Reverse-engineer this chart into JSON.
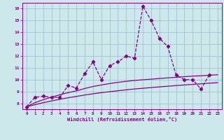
{
  "xlabel": "Windchill (Refroidissement éolien,°C)",
  "x": [
    0,
    1,
    2,
    3,
    4,
    5,
    6,
    7,
    8,
    9,
    10,
    11,
    12,
    13,
    14,
    15,
    16,
    17,
    18,
    19,
    20,
    21,
    22,
    23
  ],
  "line1": [
    7.7,
    8.5,
    8.6,
    8.5,
    8.5,
    9.5,
    9.3,
    10.5,
    11.5,
    10.0,
    11.2,
    11.5,
    12.0,
    11.8,
    16.2,
    15.0,
    13.5,
    12.8,
    10.4,
    10.0,
    10.0,
    9.2,
    10.4,
    null
  ],
  "line2": [
    7.7,
    8.05,
    8.3,
    8.52,
    8.72,
    8.9,
    9.05,
    9.25,
    9.42,
    9.55,
    9.67,
    9.77,
    9.86,
    9.93,
    9.99,
    10.04,
    10.1,
    10.15,
    10.2,
    10.25,
    10.3,
    10.33,
    10.37,
    10.42
  ],
  "line3": [
    7.7,
    7.88,
    8.05,
    8.2,
    8.34,
    8.47,
    8.58,
    8.7,
    8.8,
    8.9,
    8.98,
    9.06,
    9.14,
    9.21,
    9.27,
    9.33,
    9.39,
    9.44,
    9.5,
    9.55,
    9.6,
    9.65,
    9.7,
    9.75
  ],
  "line_color": "#880088",
  "bg_color": "#cce8ea",
  "grid_color": "#99bbcc",
  "ylim": [
    7.5,
    16.5
  ],
  "yticks": [
    8,
    9,
    10,
    11,
    12,
    13,
    14,
    15,
    16
  ],
  "xlim": [
    -0.5,
    23.5
  ]
}
